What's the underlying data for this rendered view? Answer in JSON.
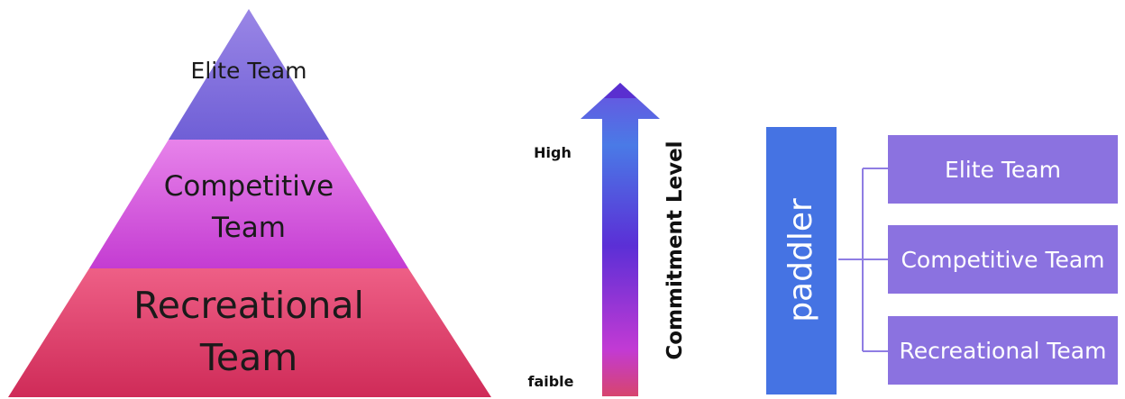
{
  "pyramid": {
    "levels": [
      {
        "label": "Elite Team",
        "color_top": "#9a86e6",
        "color_bottom": "#6f5fd6"
      },
      {
        "label_lines": [
          "Competitive",
          "Team"
        ],
        "color_top": "#e783ea",
        "color_bottom": "#c43cd2"
      },
      {
        "label_lines": [
          "Recreational",
          "Team"
        ],
        "color_top": "#ee5f86",
        "color_bottom": "#cf2b58"
      }
    ]
  },
  "arrow": {
    "high_label": "High",
    "low_label": "faible",
    "axis_title": "Commitment Level",
    "colors": [
      "#6a52e0",
      "#4a7ae6",
      "#5b2fd6",
      "#c23ad4",
      "#d7456e"
    ]
  },
  "hierarchy": {
    "root_label": "paddler",
    "root_color": "#4573e3",
    "child_color": "#8b72e0",
    "line_color": "#8f7de3",
    "children": [
      "Elite Team",
      "Competitive Team",
      "Recreational Team"
    ]
  }
}
